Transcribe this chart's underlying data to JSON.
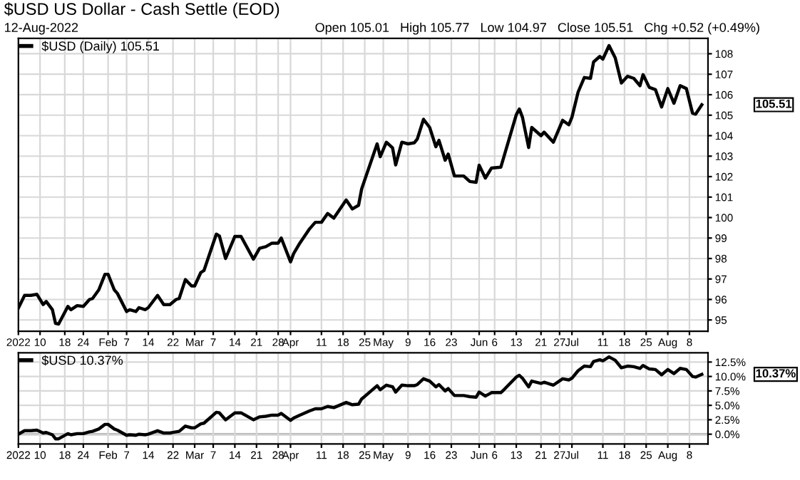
{
  "chart_data": [
    {
      "type": "line",
      "title": "$USD US Dollar - Cash Settle (EOD)",
      "subtitle": "12-Aug-2022",
      "annotations": [
        "Open 105.01   High 105.77   Low 104.97   Close 105.51   Chg +0.52 (+0.49%)",
        "105.51"
      ],
      "x": [
        "2022-01-03",
        "2022-01-05",
        "2022-01-07",
        "2022-01-09",
        "2022-01-11",
        "2022-01-12",
        "2022-01-14",
        "2022-01-15",
        "2022-01-16",
        "2022-01-19",
        "2022-01-20",
        "2022-01-22",
        "2022-01-24",
        "2022-01-26",
        "2022-01-27",
        "2022-01-29",
        "2022-01-31",
        "2022-02-01",
        "2022-02-03",
        "2022-02-04",
        "2022-02-07",
        "2022-02-08",
        "2022-02-10",
        "2022-02-11",
        "2022-02-13",
        "2022-02-14",
        "2022-02-17",
        "2022-02-19",
        "2022-02-21",
        "2022-02-23",
        "2022-02-24",
        "2022-02-26",
        "2022-02-28",
        "2022-03-01",
        "2022-03-03",
        "2022-03-04",
        "2022-03-08",
        "2022-03-09",
        "2022-03-11",
        "2022-03-14",
        "2022-03-16",
        "2022-03-20",
        "2022-03-22",
        "2022-03-24",
        "2022-03-26",
        "2022-03-28",
        "2022-03-29",
        "2022-04-01",
        "2022-04-02",
        "2022-04-04",
        "2022-04-07",
        "2022-04-09",
        "2022-04-11",
        "2022-04-13",
        "2022-04-15",
        "2022-04-19",
        "2022-04-21",
        "2022-04-23",
        "2022-04-24",
        "2022-04-29",
        "2022-04-30",
        "2022-05-02",
        "2022-05-04",
        "2022-05-05",
        "2022-05-07",
        "2022-05-09",
        "2022-05-11",
        "2022-05-12",
        "2022-05-14",
        "2022-05-16",
        "2022-05-18",
        "2022-05-19",
        "2022-05-21",
        "2022-05-22",
        "2022-05-24",
        "2022-05-27",
        "2022-05-29",
        "2022-05-31",
        "2022-06-01",
        "2022-06-03",
        "2022-06-05",
        "2022-06-08",
        "2022-06-09",
        "2022-06-13",
        "2022-06-14",
        "2022-06-15",
        "2022-06-17",
        "2022-06-18",
        "2022-06-21",
        "2022-06-22",
        "2022-06-25",
        "2022-06-28",
        "2022-06-30",
        "2022-07-01",
        "2022-07-03",
        "2022-07-05",
        "2022-07-07",
        "2022-07-08",
        "2022-07-10",
        "2022-07-11",
        "2022-07-13",
        "2022-07-15",
        "2022-07-17",
        "2022-07-19",
        "2022-07-21",
        "2022-07-23",
        "2022-07-24",
        "2022-07-26",
        "2022-07-28",
        "2022-07-30",
        "2022-08-01",
        "2022-08-03",
        "2022-08-05",
        "2022-08-07",
        "2022-08-09",
        "2022-08-10",
        "2022-08-12"
      ],
      "series": [
        {
          "name": "$USD (Daily) 105.51",
          "values": [
            95.58,
            96.2,
            96.2,
            96.25,
            95.75,
            95.9,
            95.5,
            94.83,
            94.8,
            95.66,
            95.5,
            95.7,
            95.66,
            96.0,
            96.05,
            96.47,
            97.23,
            97.23,
            96.47,
            96.3,
            95.41,
            95.5,
            95.41,
            95.6,
            95.5,
            95.6,
            96.2,
            95.75,
            95.75,
            96.0,
            96.05,
            96.97,
            96.66,
            96.66,
            97.32,
            97.41,
            99.19,
            99.1,
            98.0,
            99.08,
            99.08,
            97.97,
            98.5,
            98.58,
            98.75,
            98.75,
            99.0,
            97.84,
            98.24,
            98.75,
            99.42,
            99.77,
            99.77,
            100.2,
            99.97,
            100.86,
            100.42,
            100.6,
            101.4,
            103.6,
            102.97,
            103.68,
            103.4,
            102.57,
            103.68,
            103.6,
            103.65,
            103.84,
            104.8,
            104.4,
            103.46,
            103.77,
            102.8,
            103.1,
            102.03,
            102.03,
            101.76,
            101.72,
            102.56,
            101.93,
            102.42,
            102.46,
            102.97,
            105.02,
            105.3,
            104.9,
            103.42,
            104.4,
            104.0,
            104.17,
            103.68,
            104.75,
            104.53,
            104.9,
            106.13,
            106.84,
            106.8,
            107.6,
            107.87,
            107.74,
            108.4,
            107.8,
            106.57,
            106.9,
            106.8,
            106.44,
            106.98,
            106.36,
            106.25,
            105.4,
            106.3,
            105.58,
            106.44,
            106.3,
            105.1,
            105.05,
            105.51
          ],
          "colors": [
            "#000000",
            "#000000",
            "#000000",
            "#000000",
            "#cc1144",
            "#000000",
            "#cc1144",
            "#cc1144",
            "#cc1144",
            "#000000",
            "#cc1144",
            "#000000",
            "#cc1144",
            "#000000",
            "#000000",
            "#000000",
            "#000000",
            "#000000",
            "#cc1144",
            "#cc1144",
            "#cc1144",
            "#000000",
            "#cc1144",
            "#000000",
            "#cc1144",
            "#000000",
            "#000000",
            "#cc1144",
            "#000000",
            "#000000",
            "#000000",
            "#000000",
            "#cc1144",
            "#000000",
            "#000000",
            "#000000",
            "#000000",
            "#cc1144",
            "#cc1144",
            "#000000",
            "#000000",
            "#cc1144",
            "#000000",
            "#000000",
            "#000000",
            "#000000",
            "#000000",
            "#cc1144",
            "#000000",
            "#000000",
            "#000000",
            "#000000",
            "#000000",
            "#000000",
            "#cc1144",
            "#000000",
            "#cc1144",
            "#000000",
            "#000000",
            "#000000",
            "#cc1144",
            "#000000",
            "#cc1144",
            "#cc1144",
            "#000000",
            "#cc1144",
            "#000000",
            "#000000",
            "#000000",
            "#cc1144",
            "#cc1144",
            "#000000",
            "#cc1144",
            "#000000",
            "#cc1144",
            "#000000",
            "#cc1144",
            "#cc1144",
            "#000000",
            "#cc1144",
            "#000000",
            "#000000",
            "#000000",
            "#000000",
            "#000000",
            "#cc1144",
            "#cc1144",
            "#000000",
            "#cc1144",
            "#000000",
            "#cc1144",
            "#000000",
            "#cc1144",
            "#000000",
            "#000000",
            "#000000",
            "#cc1144",
            "#000000",
            "#000000",
            "#cc1144",
            "#000000",
            "#cc1144",
            "#cc1144",
            "#000000",
            "#cc1144",
            "#cc1144",
            "#000000",
            "#cc1144",
            "#cc1144",
            "#cc1144",
            "#000000",
            "#cc1144",
            "#000000",
            "#cc1144",
            "#cc1144",
            "#cc1144",
            "#000000"
          ]
        }
      ],
      "xlim": [
        "2022-01-03",
        "2022-08-14"
      ],
      "ylim": [
        94.45,
        108.75
      ],
      "yticks": [
        95,
        96,
        97,
        98,
        99,
        100,
        101,
        102,
        103,
        104,
        105,
        106,
        107,
        108
      ],
      "xticks": [
        {
          "value": "2022-01-03",
          "label": "2022"
        },
        {
          "value": "2022-01-10",
          "label": "10"
        },
        {
          "value": "2022-01-18",
          "label": "18"
        },
        {
          "value": "2022-01-24",
          "label": "24"
        },
        {
          "value": "2022-02-01",
          "label": "Feb"
        },
        {
          "value": "2022-02-07",
          "label": "7"
        },
        {
          "value": "2022-02-14",
          "label": "14"
        },
        {
          "value": "2022-02-22",
          "label": "22"
        },
        {
          "value": "2022-03-01",
          "label": "Mar"
        },
        {
          "value": "2022-03-07",
          "label": "7"
        },
        {
          "value": "2022-03-14",
          "label": "14"
        },
        {
          "value": "2022-03-21",
          "label": "21"
        },
        {
          "value": "2022-03-28",
          "label": "28"
        },
        {
          "value": "2022-04-01",
          "label": "Apr"
        },
        {
          "value": "2022-04-11",
          "label": "11"
        },
        {
          "value": "2022-04-18",
          "label": "18"
        },
        {
          "value": "2022-04-25",
          "label": "25"
        },
        {
          "value": "2022-05-01",
          "label": "May"
        },
        {
          "value": "2022-05-09",
          "label": "9"
        },
        {
          "value": "2022-05-16",
          "label": "16"
        },
        {
          "value": "2022-05-23",
          "label": "23"
        },
        {
          "value": "2022-06-01",
          "label": "Jun"
        },
        {
          "value": "2022-06-06",
          "label": "6"
        },
        {
          "value": "2022-06-13",
          "label": "13"
        },
        {
          "value": "2022-06-21",
          "label": "21"
        },
        {
          "value": "2022-06-27",
          "label": "27"
        },
        {
          "value": "2022-07-01",
          "label": "Jul"
        },
        {
          "value": "2022-07-11",
          "label": "11"
        },
        {
          "value": "2022-07-18",
          "label": "18"
        },
        {
          "value": "2022-07-25",
          "label": "25"
        },
        {
          "value": "2022-08-01",
          "label": "Aug"
        },
        {
          "value": "2022-08-08",
          "label": "8"
        }
      ],
      "grid": true,
      "legend": "top left",
      "marker": "none",
      "line_style": "solid"
    },
    {
      "type": "line",
      "annotations": [
        "10.37%"
      ],
      "x": [
        "2022-01-03",
        "2022-01-05",
        "2022-01-07",
        "2022-01-09",
        "2022-01-11",
        "2022-01-12",
        "2022-01-14",
        "2022-01-15",
        "2022-01-16",
        "2022-01-19",
        "2022-01-20",
        "2022-01-22",
        "2022-01-24",
        "2022-01-26",
        "2022-01-27",
        "2022-01-29",
        "2022-01-31",
        "2022-02-01",
        "2022-02-03",
        "2022-02-04",
        "2022-02-07",
        "2022-02-08",
        "2022-02-10",
        "2022-02-11",
        "2022-02-13",
        "2022-02-14",
        "2022-02-17",
        "2022-02-19",
        "2022-02-21",
        "2022-02-23",
        "2022-02-24",
        "2022-02-26",
        "2022-02-28",
        "2022-03-01",
        "2022-03-03",
        "2022-03-04",
        "2022-03-08",
        "2022-03-09",
        "2022-03-11",
        "2022-03-14",
        "2022-03-16",
        "2022-03-20",
        "2022-03-22",
        "2022-03-24",
        "2022-03-26",
        "2022-03-28",
        "2022-03-29",
        "2022-04-01",
        "2022-04-02",
        "2022-04-04",
        "2022-04-07",
        "2022-04-09",
        "2022-04-11",
        "2022-04-13",
        "2022-04-15",
        "2022-04-19",
        "2022-04-21",
        "2022-04-23",
        "2022-04-24",
        "2022-04-29",
        "2022-04-30",
        "2022-05-02",
        "2022-05-04",
        "2022-05-05",
        "2022-05-07",
        "2022-05-09",
        "2022-05-11",
        "2022-05-12",
        "2022-05-14",
        "2022-05-16",
        "2022-05-18",
        "2022-05-19",
        "2022-05-21",
        "2022-05-22",
        "2022-05-24",
        "2022-05-27",
        "2022-05-29",
        "2022-05-31",
        "2022-06-01",
        "2022-06-03",
        "2022-06-05",
        "2022-06-08",
        "2022-06-09",
        "2022-06-13",
        "2022-06-14",
        "2022-06-15",
        "2022-06-17",
        "2022-06-18",
        "2022-06-21",
        "2022-06-22",
        "2022-06-25",
        "2022-06-28",
        "2022-06-30",
        "2022-07-01",
        "2022-07-03",
        "2022-07-05",
        "2022-07-07",
        "2022-07-08",
        "2022-07-10",
        "2022-07-11",
        "2022-07-13",
        "2022-07-15",
        "2022-07-17",
        "2022-07-19",
        "2022-07-21",
        "2022-07-23",
        "2022-07-24",
        "2022-07-26",
        "2022-07-28",
        "2022-07-30",
        "2022-08-01",
        "2022-08-03",
        "2022-08-05",
        "2022-08-07",
        "2022-08-09",
        "2022-08-10",
        "2022-08-12"
      ],
      "series": [
        {
          "name": "$USD 10.37%",
          "color": "#000000",
          "values": [
            0.0,
            0.6,
            0.6,
            0.7,
            0.2,
            0.3,
            -0.1,
            -0.8,
            -0.8,
            0.1,
            -0.1,
            0.1,
            0.1,
            0.4,
            0.5,
            0.9,
            1.7,
            1.7,
            0.9,
            0.7,
            -0.2,
            -0.1,
            -0.2,
            0.0,
            -0.1,
            0.0,
            0.6,
            0.2,
            0.2,
            0.4,
            0.5,
            1.4,
            1.1,
            1.1,
            1.8,
            1.9,
            3.8,
            3.7,
            2.5,
            3.7,
            3.7,
            2.5,
            3.0,
            3.1,
            3.3,
            3.3,
            3.6,
            2.4,
            2.8,
            3.3,
            4.0,
            4.4,
            4.4,
            4.8,
            4.6,
            5.5,
            5.1,
            5.2,
            6.1,
            8.4,
            7.7,
            8.5,
            8.2,
            7.3,
            8.5,
            8.4,
            8.4,
            8.6,
            9.6,
            9.2,
            8.2,
            8.6,
            7.5,
            7.9,
            6.7,
            6.7,
            6.5,
            6.4,
            7.3,
            6.6,
            7.2,
            7.2,
            7.7,
            9.9,
            10.2,
            9.7,
            8.2,
            9.2,
            8.8,
            9.0,
            8.5,
            9.6,
            9.4,
            9.7,
            11.0,
            11.8,
            11.7,
            12.6,
            12.9,
            12.7,
            13.4,
            12.8,
            11.5,
            11.8,
            11.7,
            11.4,
            11.9,
            11.3,
            11.2,
            10.3,
            11.2,
            10.5,
            11.4,
            11.2,
            10.0,
            9.9,
            10.37
          ]
        }
      ],
      "xlim": [
        "2022-01-03",
        "2022-08-14"
      ],
      "ylim": [
        -1.7,
        14.1
      ],
      "yticks": [
        {
          "value": 0,
          "label": "0.0%"
        },
        {
          "value": 2.5,
          "label": "2.5%"
        },
        {
          "value": 5,
          "label": "5.0%"
        },
        {
          "value": 7.5,
          "label": "7.5%"
        },
        {
          "value": 10,
          "label": "10.0%"
        },
        {
          "value": 12.5,
          "label": "12.5%"
        }
      ],
      "xticks": [
        {
          "value": "2022-01-03",
          "label": "2022"
        },
        {
          "value": "2022-01-10",
          "label": "10"
        },
        {
          "value": "2022-01-18",
          "label": "18"
        },
        {
          "value": "2022-01-24",
          "label": "24"
        },
        {
          "value": "2022-02-01",
          "label": "Feb"
        },
        {
          "value": "2022-02-07",
          "label": "7"
        },
        {
          "value": "2022-02-14",
          "label": "14"
        },
        {
          "value": "2022-02-22",
          "label": "22"
        },
        {
          "value": "2022-03-01",
          "label": "Mar"
        },
        {
          "value": "2022-03-07",
          "label": "7"
        },
        {
          "value": "2022-03-14",
          "label": "14"
        },
        {
          "value": "2022-03-21",
          "label": "21"
        },
        {
          "value": "2022-03-28",
          "label": "28"
        },
        {
          "value": "2022-04-01",
          "label": "Apr"
        },
        {
          "value": "2022-04-11",
          "label": "11"
        },
        {
          "value": "2022-04-18",
          "label": "18"
        },
        {
          "value": "2022-04-25",
          "label": "25"
        },
        {
          "value": "2022-05-01",
          "label": "May"
        },
        {
          "value": "2022-05-09",
          "label": "9"
        },
        {
          "value": "2022-05-16",
          "label": "16"
        },
        {
          "value": "2022-05-23",
          "label": "23"
        },
        {
          "value": "2022-06-01",
          "label": "Jun"
        },
        {
          "value": "2022-06-06",
          "label": "6"
        },
        {
          "value": "2022-06-13",
          "label": "13"
        },
        {
          "value": "2022-06-21",
          "label": "21"
        },
        {
          "value": "2022-06-27",
          "label": "27"
        },
        {
          "value": "2022-07-01",
          "label": "Jul"
        },
        {
          "value": "2022-07-11",
          "label": "11"
        },
        {
          "value": "2022-07-18",
          "label": "18"
        },
        {
          "value": "2022-07-25",
          "label": "25"
        },
        {
          "value": "2022-08-01",
          "label": "Aug"
        },
        {
          "value": "2022-08-08",
          "label": "8"
        }
      ],
      "ref_lines": [
        {
          "axis": "y",
          "value": 0,
          "color": "#888888"
        }
      ],
      "grid": true,
      "legend": "top left",
      "marker": "none",
      "line_style": "solid"
    }
  ]
}
